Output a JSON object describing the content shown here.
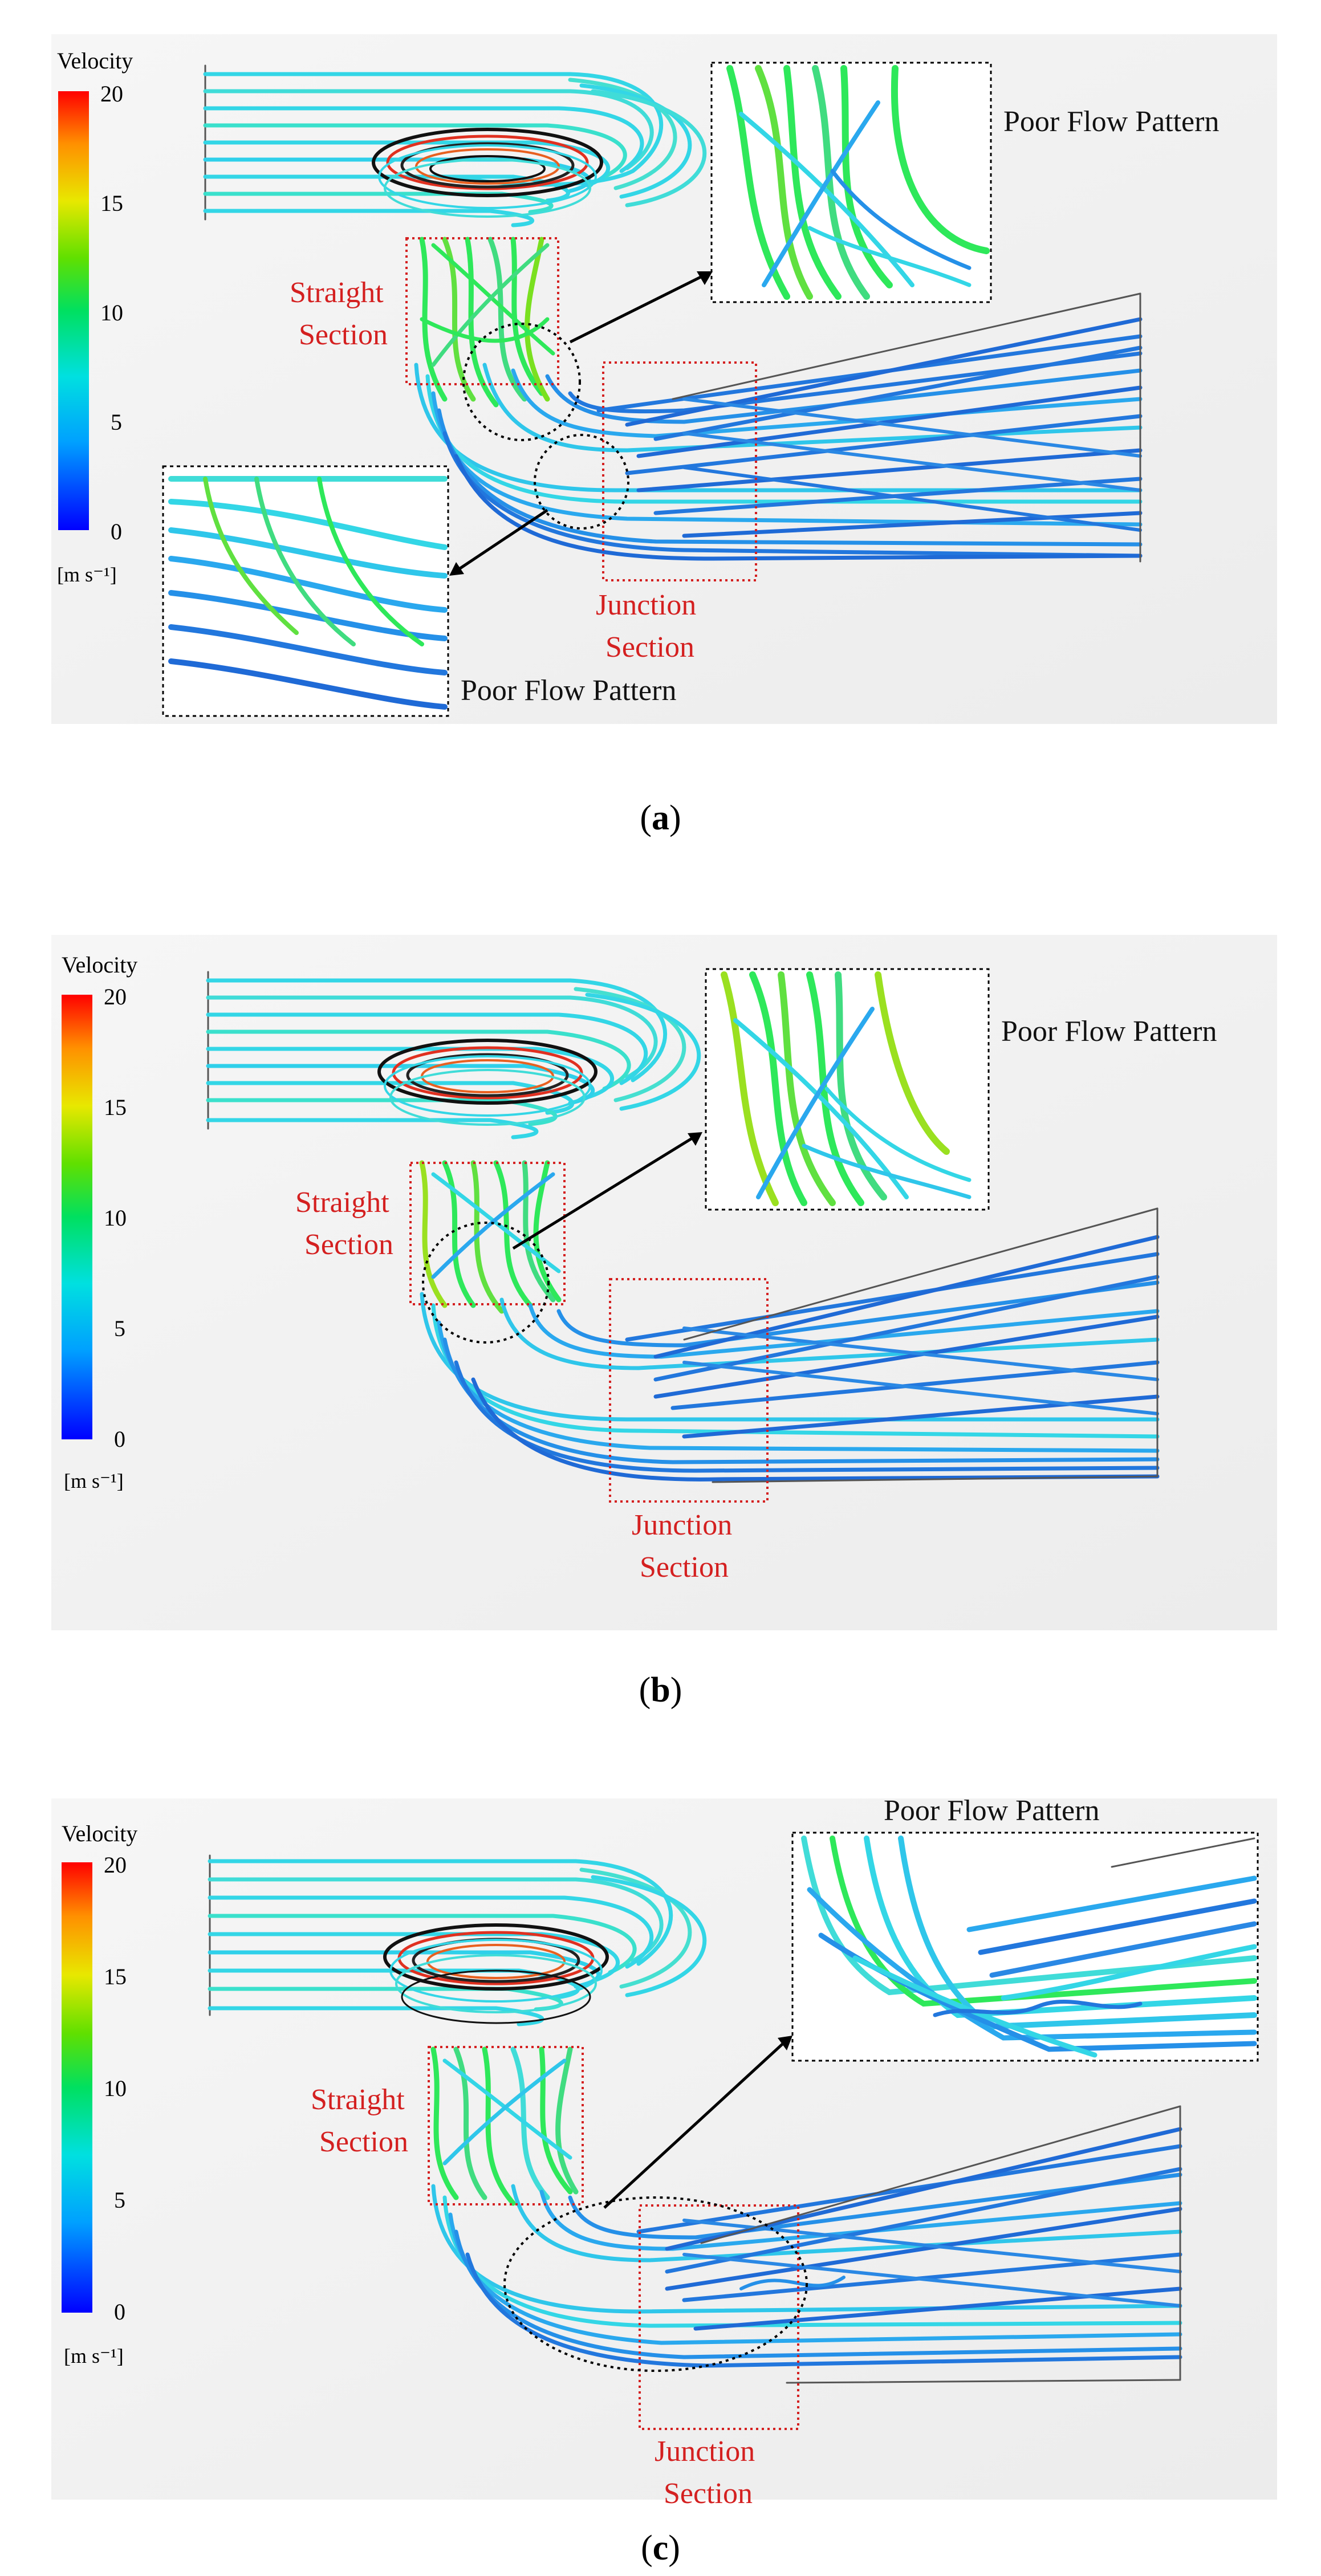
{
  "legend": {
    "title": "Velocity",
    "ticks": [
      "20",
      "15",
      "10",
      "5",
      "0"
    ],
    "unit": "[m s⁻¹]",
    "colors": [
      "#0000ff",
      "#00a0ff",
      "#00e0e0",
      "#00e060",
      "#60e000",
      "#e8e800",
      "#ff9000",
      "#ff0000"
    ]
  },
  "labels": {
    "straight_line1": "Straight",
    "straight_line2": "Section",
    "junction_line1": "Junction",
    "junction_line2": "Section",
    "poor_flow": "Poor Flow Pattern"
  },
  "captions": {
    "a": "(a)",
    "b": "(b)",
    "c": "(c)"
  },
  "colors": {
    "cyan_stream": "#33d6e6",
    "blue_stream": "#2277dd",
    "green_stream": "#2ee85a",
    "label_red": "#d42020"
  }
}
